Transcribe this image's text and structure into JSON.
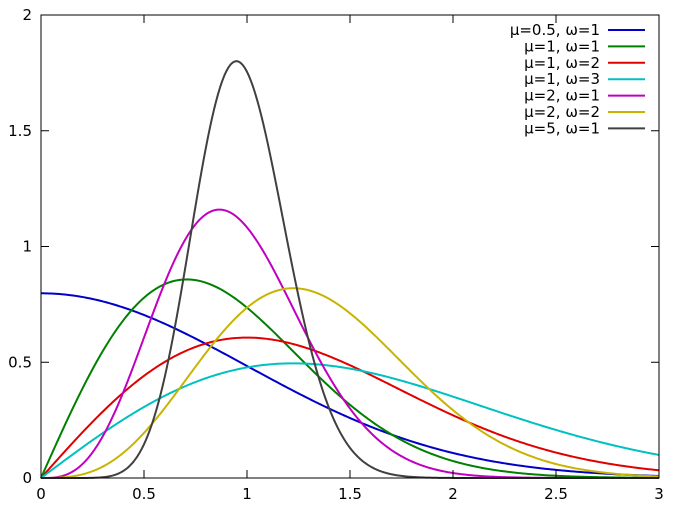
{
  "chart_data": {
    "type": "line",
    "title": "",
    "xlabel": "",
    "ylabel": "",
    "xlim": [
      0,
      3
    ],
    "ylim": [
      0,
      2
    ],
    "x_ticks": [
      "0",
      "0.5",
      "1",
      "1.5",
      "2",
      "2.5",
      "3"
    ],
    "y_ticks": [
      "0",
      "0.5",
      "1",
      "1.5",
      "2"
    ],
    "grid": false,
    "legend_position": "top-right",
    "series": [
      {
        "name": "μ=0.5, ω=1",
        "color": "#0000c8",
        "mu": 0.5,
        "omega": 1,
        "x": [
          0,
          0.5,
          1,
          1.5,
          2,
          2.5,
          3
        ],
        "y": [
          0.8,
          0.7,
          0.48,
          0.26,
          0.11,
          0.04,
          0.01
        ]
      },
      {
        "name": "μ=1, ω=1",
        "color": "#008000",
        "mu": 1,
        "omega": 1,
        "x": [
          0,
          0.5,
          1,
          1.5,
          2,
          2.5,
          3
        ],
        "y": [
          0,
          0.78,
          0.74,
          0.32,
          0.07,
          0.01,
          0.0
        ]
      },
      {
        "name": "μ=1, ω=2",
        "color": "#e00000",
        "mu": 1,
        "omega": 2,
        "x": [
          0,
          0.5,
          1,
          1.5,
          2,
          2.5,
          3
        ],
        "y": [
          0,
          0.47,
          0.61,
          0.49,
          0.27,
          0.11,
          0.03
        ]
      },
      {
        "name": "μ=1, ω=3",
        "color": "#00c0c0",
        "mu": 1,
        "omega": 3,
        "x": [
          0,
          0.5,
          1,
          1.5,
          2,
          2.5,
          3
        ],
        "y": [
          0,
          0.3,
          0.47,
          0.48,
          0.36,
          0.22,
          0.1
        ]
      },
      {
        "name": "μ=2, ω=1",
        "color": "#c000c0",
        "mu": 2,
        "omega": 1,
        "x": [
          0,
          0.5,
          1,
          1.5,
          2,
          2.5,
          3
        ],
        "y": [
          0,
          0.53,
          1.08,
          0.39,
          0.02,
          0.0,
          0.0
        ]
      },
      {
        "name": "μ=2, ω=2",
        "color": "#c8b400",
        "mu": 2,
        "omega": 2,
        "x": [
          0,
          0.5,
          1,
          1.5,
          2,
          2.5,
          3
        ],
        "y": [
          0,
          0.12,
          0.59,
          0.7,
          0.27,
          0.04,
          0.0
        ]
      },
      {
        "name": "μ=5, ω=1",
        "color": "#404040",
        "mu": 5,
        "omega": 1,
        "x": [
          0,
          0.5,
          1,
          1.5,
          2,
          2.5,
          3
        ],
        "y": [
          0,
          0.24,
          1.76,
          0.2,
          0.0,
          0.0,
          0.0
        ]
      }
    ]
  }
}
